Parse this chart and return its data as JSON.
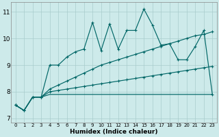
{
  "xlabel": "Humidex (Indice chaleur)",
  "xlim": [
    -0.5,
    23.5
  ],
  "ylim": [
    6.85,
    11.35
  ],
  "yticks": [
    7,
    8,
    9,
    10,
    11
  ],
  "xticks": [
    0,
    1,
    2,
    3,
    4,
    5,
    6,
    7,
    8,
    9,
    10,
    11,
    12,
    13,
    14,
    15,
    16,
    17,
    18,
    19,
    20,
    21,
    22,
    23
  ],
  "bg_color": "#cdeaea",
  "grid_color": "#a8cccc",
  "line_color": "#006666",
  "series": [
    [
      7.5,
      7.3,
      7.8,
      7.8,
      9.0,
      9.0,
      9.3,
      9.5,
      9.6,
      10.6,
      9.55,
      10.55,
      9.6,
      10.3,
      10.3,
      11.1,
      10.5,
      9.75,
      9.8,
      9.2,
      9.2,
      9.7,
      10.3,
      7.9
    ],
    [
      7.5,
      7.3,
      7.8,
      7.8,
      8.1,
      8.25,
      8.4,
      8.55,
      8.7,
      8.85,
      9.0,
      9.1,
      9.2,
      9.3,
      9.4,
      9.5,
      9.6,
      9.7,
      9.8,
      9.9,
      10.0,
      10.1,
      10.15,
      10.25
    ],
    [
      7.5,
      7.3,
      7.8,
      7.8,
      8.0,
      8.05,
      8.1,
      8.15,
      8.2,
      8.25,
      8.3,
      8.35,
      8.4,
      8.45,
      8.5,
      8.55,
      8.6,
      8.65,
      8.7,
      8.75,
      8.8,
      8.85,
      8.9,
      8.95
    ],
    [
      7.5,
      7.3,
      7.8,
      7.8,
      7.9,
      7.9,
      7.9,
      7.9,
      7.9,
      7.9,
      7.9,
      7.9,
      7.9,
      7.9,
      7.9,
      7.9,
      7.9,
      7.9,
      7.9,
      7.9,
      7.9,
      7.9,
      7.9,
      7.9
    ]
  ],
  "has_markers": [
    true,
    true,
    true,
    false
  ],
  "xtick_fontsize": 5.0,
  "ytick_fontsize": 6.5,
  "xlabel_fontsize": 6.5
}
